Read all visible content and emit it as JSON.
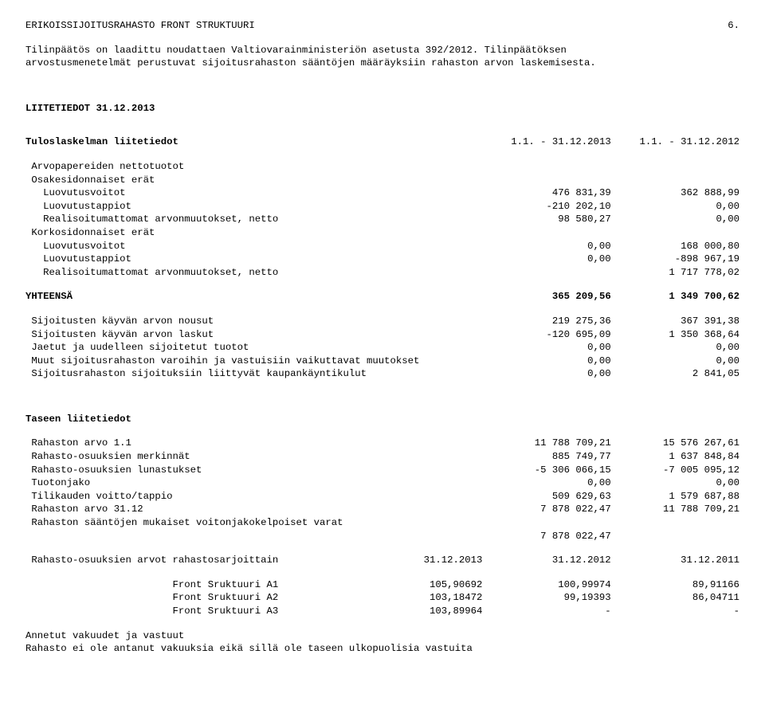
{
  "header": {
    "title": "ERIKOISSIJOITUSRAHASTO FRONT STRUKTUURI",
    "page_number": "6."
  },
  "intro": {
    "para1": "Tilinpäätös on laadittu noudattaen Valtiovarainministeriön asetusta 392/2012. Tilinpäätöksen",
    "para2": "arvostusmenetelmät perustuvat sijoitusrahaston sääntöjen määräyksiin rahaston arvon laskemisesta."
  },
  "liitetiedot_heading": "LIITETIEDOT 31.12.2013",
  "tulos": {
    "heading": "Tuloslaskelman liitetiedot",
    "period1": "1.1. - 31.12.2013",
    "period2": "1.1. - 31.12.2012",
    "sec1": "Arvopapereiden nettotuotot",
    "sec1a": "Osakesidonnaiset erät",
    "r1": {
      "l": "   Luovutusvoitot",
      "c1": "476 831,39",
      "c2": "362 888,99"
    },
    "r2": {
      "l": "   Luovutustappiot",
      "c1": "-210 202,10",
      "c2": "0,00"
    },
    "r3": {
      "l": "   Realisoitumattomat arvonmuutokset, netto",
      "c1": "98 580,27",
      "c2": "0,00"
    },
    "sec1b": "Korkosidonnaiset erät",
    "r4": {
      "l": "   Luovutusvoitot",
      "c1": "0,00",
      "c2": "168 000,80"
    },
    "r5": {
      "l": "   Luovutustappiot",
      "c1": "0,00",
      "c2": "-898 967,19"
    },
    "r6": {
      "l": "   Realisoitumattomat arvonmuutokset, netto",
      "c1": "",
      "c2": "1 717 778,02"
    },
    "yhteensa": {
      "l": "YHTEENSÄ",
      "c1": "365 209,56",
      "c2": "1 349 700,62"
    },
    "s1": {
      "l": " Sijoitusten käyvän arvon nousut",
      "c1": "219 275,36",
      "c2": "367 391,38"
    },
    "s2": {
      "l": " Sijoitusten käyvän arvon laskut",
      "c1": "-120 695,09",
      "c2": "1 350 368,64"
    },
    "s3": {
      "l": " Jaetut ja uudelleen sijoitetut tuotot",
      "c1": "0,00",
      "c2": "0,00"
    },
    "s4": {
      "l": " Muut sijoitusrahaston varoihin ja vastuisiin vaikuttavat muutokset",
      "c1": "0,00",
      "c2": "0,00"
    },
    "s5": {
      "l": " Sijoitusrahaston sijoituksiin liittyvät kaupankäyntikulut",
      "c1": "0,00",
      "c2": "2 841,05"
    }
  },
  "tase": {
    "heading": "Taseen liitetiedot",
    "r1": {
      "l": " Rahaston arvo 1.1",
      "c1": "11 788 709,21",
      "c2": "15 576 267,61"
    },
    "r2": {
      "l": " Rahasto-osuuksien merkinnät",
      "c1": "885 749,77",
      "c2": "1 637 848,84"
    },
    "r3": {
      "l": " Rahasto-osuuksien lunastukset",
      "c1": "-5 306 066,15",
      "c2": "-7 005 095,12"
    },
    "r4": {
      "l": " Tuotonjako",
      "c1": "0,00",
      "c2": "0,00"
    },
    "r5": {
      "l": " Tilikauden voitto/tappio",
      "c1": "509 629,63",
      "c2": "1 579 687,88"
    },
    "r6": {
      "l": " Rahaston arvo 31.12",
      "c1": "7 878 022,47",
      "c2": "11 788 709,21"
    },
    "r7": {
      "l": " Rahaston sääntöjen mukaiset voitonjakokelpoiset varat",
      "c1": "",
      "c2": ""
    },
    "r7b": {
      "l": "",
      "c1": "7 878 022,47",
      "c2": ""
    }
  },
  "shares": {
    "heading": " Rahasto-osuuksien arvot rahastosarjoittain",
    "h1": "31.12.2013",
    "h2": "31.12.2012",
    "h3": "31.12.2011",
    "r1": {
      "l": "                         Front Sruktuuri A1",
      "c1": "105,90692",
      "c2": "100,99974",
      "c3": "89,91166"
    },
    "r2": {
      "l": "                         Front Sruktuuri A2",
      "c1": "103,18472",
      "c2": "99,19393",
      "c3": "86,04711"
    },
    "r3": {
      "l": "                         Front Sruktuuri A3",
      "c1": "103,89964",
      "c2": "-",
      "c3": "-"
    }
  },
  "footer": {
    "l1": "Annetut vakuudet ja vastuut",
    "l2": " Rahasto ei ole antanut vakuuksia eikä sillä ole taseen ulkopuolisia vastuita"
  }
}
